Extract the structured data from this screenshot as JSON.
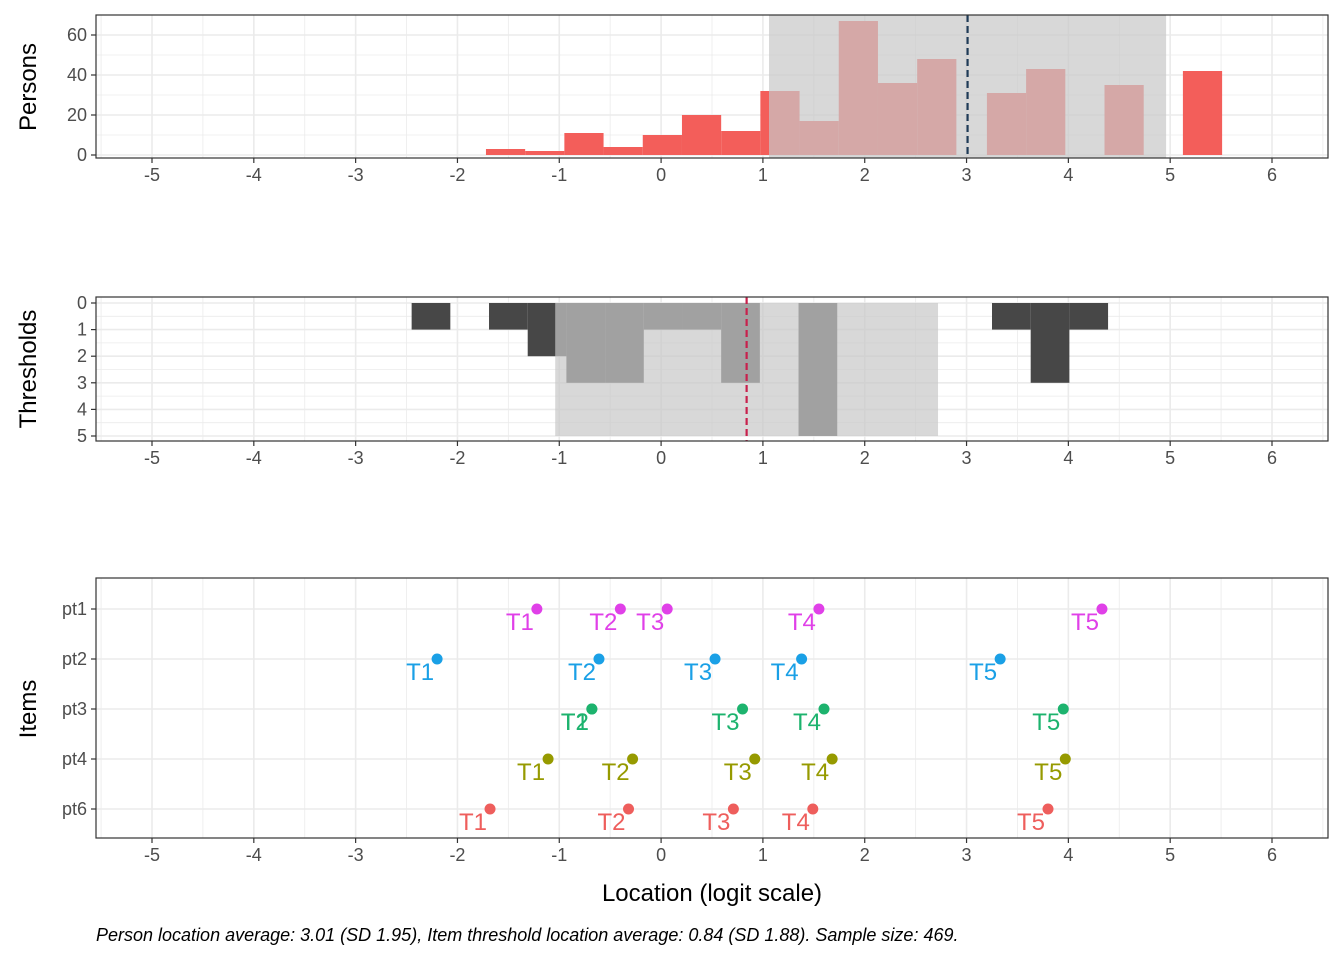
{
  "colors": {
    "person_bar": "#F35E5A",
    "threshold_bar": "#474747",
    "band": "#C8C8C8",
    "person_mean_line": "#1F3B57",
    "threshold_mean_line": "#C8204C",
    "grid": "#EBEBEB",
    "panel_border": "#333333",
    "item_colors": {
      "pt1": "#E040E8",
      "pt2": "#1AA0E6",
      "pt3": "#1DB36E",
      "pt4": "#969A00",
      "pt6": "#EE5E5C"
    }
  },
  "shared_x": {
    "label": "Location (logit scale)",
    "range": [
      -5.55,
      6.55
    ],
    "ticks": [
      -5,
      -4,
      -3,
      -2,
      -1,
      0,
      1,
      2,
      3,
      4,
      5,
      6
    ],
    "tick_labels": [
      "-5",
      "-4",
      "-3",
      "-2",
      "-1",
      "0",
      "1",
      "2",
      "3",
      "4",
      "5",
      "6"
    ]
  },
  "caption": "Person location average: 3.01 (SD 1.95), Item threshold location average: 0.84 (SD 1.88). Sample size: 469.",
  "chart_data": [
    {
      "type": "bar",
      "panel": "persons",
      "ylabel": "Persons",
      "ylim": [
        0,
        70
      ],
      "yticks": [
        0,
        20,
        40,
        60
      ],
      "bin_width": 0.385,
      "bins": [
        {
          "x0": -1.72,
          "x1": -1.335,
          "value": 3
        },
        {
          "x0": -1.335,
          "x1": -0.95,
          "value": 2
        },
        {
          "x0": -0.95,
          "x1": -0.565,
          "value": 11
        },
        {
          "x0": -0.565,
          "x1": -0.18,
          "value": 4
        },
        {
          "x0": -0.18,
          "x1": 0.205,
          "value": 10
        },
        {
          "x0": 0.205,
          "x1": 0.59,
          "value": 20
        },
        {
          "x0": 0.59,
          "x1": 0.975,
          "value": 12
        },
        {
          "x0": 0.975,
          "x1": 1.36,
          "value": 32
        },
        {
          "x0": 1.36,
          "x1": 1.745,
          "value": 17
        },
        {
          "x0": 1.745,
          "x1": 2.13,
          "value": 67
        },
        {
          "x0": 2.13,
          "x1": 2.515,
          "value": 36
        },
        {
          "x0": 2.515,
          "x1": 2.9,
          "value": 48
        },
        {
          "x0": 3.2,
          "x1": 3.585,
          "value": 31
        },
        {
          "x0": 3.585,
          "x1": 3.97,
          "value": 43
        },
        {
          "x0": 4.355,
          "x1": 4.74,
          "value": 35
        },
        {
          "x0": 5.125,
          "x1": 5.51,
          "value": 42
        }
      ],
      "mean": 3.01,
      "sd": 1.95,
      "band": [
        1.06,
        4.96
      ]
    },
    {
      "type": "bar",
      "panel": "thresholds",
      "ylabel": "Thresholds",
      "ylim": [
        5.25,
        -0.25
      ],
      "yticks": [
        0,
        1,
        2,
        3,
        4,
        5
      ],
      "orientation": "downward",
      "bins": [
        {
          "x0": -2.45,
          "x1": -2.07,
          "value": 1
        },
        {
          "x0": -1.69,
          "x1": -1.31,
          "value": 1
        },
        {
          "x0": -1.31,
          "x1": -0.93,
          "value": 2
        },
        {
          "x0": -0.93,
          "x1": -0.55,
          "value": 3
        },
        {
          "x0": -0.55,
          "x1": -0.17,
          "value": 3
        },
        {
          "x0": -0.17,
          "x1": 0.21,
          "value": 1
        },
        {
          "x0": 0.21,
          "x1": 0.59,
          "value": 1
        },
        {
          "x0": 0.59,
          "x1": 0.97,
          "value": 3
        },
        {
          "x0": 1.35,
          "x1": 1.73,
          "value": 5
        },
        {
          "x0": 3.25,
          "x1": 3.63,
          "value": 1
        },
        {
          "x0": 3.63,
          "x1": 4.01,
          "value": 3
        },
        {
          "x0": 4.01,
          "x1": 4.39,
          "value": 1
        }
      ],
      "mean": 0.84,
      "sd": 1.88,
      "band": [
        -1.04,
        2.72
      ]
    },
    {
      "type": "scatter",
      "panel": "items",
      "ylabel": "Items",
      "categories": [
        "pt1",
        "pt2",
        "pt3",
        "pt4",
        "pt6"
      ],
      "series": [
        {
          "item": "pt1",
          "points": [
            {
              "label": "T1",
              "x": -1.22
            },
            {
              "label": "T2",
              "x": -0.4
            },
            {
              "label": "T3",
              "x": 0.06
            },
            {
              "label": "T4",
              "x": 1.55
            },
            {
              "label": "T5",
              "x": 4.33
            }
          ]
        },
        {
          "item": "pt2",
          "points": [
            {
              "label": "T1",
              "x": -2.2
            },
            {
              "label": "T2",
              "x": -0.61
            },
            {
              "label": "T3",
              "x": 0.53
            },
            {
              "label": "T4",
              "x": 1.38
            },
            {
              "label": "T5",
              "x": 3.33
            }
          ]
        },
        {
          "item": "pt3",
          "points": [
            {
              "label": "T1",
              "x": -0.68
            },
            {
              "label": "T2",
              "x": -0.68
            },
            {
              "label": "T3",
              "x": 0.8
            },
            {
              "label": "T4",
              "x": 1.6
            },
            {
              "label": "T5",
              "x": 3.95
            }
          ]
        },
        {
          "item": "pt4",
          "points": [
            {
              "label": "T1",
              "x": -1.11
            },
            {
              "label": "T2",
              "x": -0.28
            },
            {
              "label": "T3",
              "x": 0.92
            },
            {
              "label": "T4",
              "x": 1.68
            },
            {
              "label": "T5",
              "x": 3.97
            }
          ]
        },
        {
          "item": "pt6",
          "points": [
            {
              "label": "T1",
              "x": -1.68
            },
            {
              "label": "T2",
              "x": -0.32
            },
            {
              "label": "T3",
              "x": 0.71
            },
            {
              "label": "T4",
              "x": 1.49
            },
            {
              "label": "T5",
              "x": 3.8
            }
          ]
        }
      ]
    }
  ]
}
